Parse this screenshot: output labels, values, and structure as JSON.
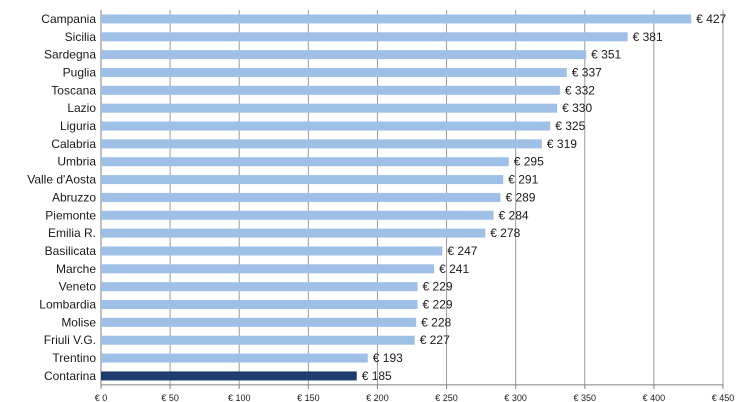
{
  "chart_data": {
    "type": "bar",
    "orientation": "horizontal",
    "categories": [
      "Campania",
      "Sicilia",
      "Sardegna",
      "Puglia",
      "Toscana",
      "Lazio",
      "Liguria",
      "Calabria",
      "Umbria",
      "Valle d'Aosta",
      "Abruzzo",
      "Piemonte",
      "Emilia R.",
      "Basilicata",
      "Marche",
      "Veneto",
      "Lombardia",
      "Molise",
      "Friuli V.G.",
      "Trentino",
      "Contarina"
    ],
    "values": [
      427,
      381,
      351,
      337,
      332,
      330,
      325,
      319,
      295,
      291,
      289,
      284,
      278,
      247,
      241,
      229,
      229,
      228,
      227,
      193,
      185
    ],
    "value_labels": [
      "€ 427",
      "€ 381",
      "€ 351",
      "€ 337",
      "€ 332",
      "€ 330",
      "€ 325",
      "€ 319",
      "€ 295",
      "€ 291",
      "€ 289",
      "€ 284",
      "€ 278",
      "€ 247",
      "€ 241",
      "€ 229",
      "€ 229",
      "€ 228",
      "€ 227",
      "€ 193",
      "€ 185"
    ],
    "highlight": "Contarina",
    "xlim": [
      0,
      450
    ],
    "ticks": [
      0,
      50,
      100,
      150,
      200,
      250,
      300,
      350,
      400,
      450
    ],
    "tick_labels": [
      "€ 0",
      "€ 50",
      "€ 100",
      "€ 150",
      "€ 200",
      "€ 250",
      "€ 300",
      "€ 350",
      "€ 400",
      "€ 450"
    ],
    "grid": true,
    "colors": {
      "bar": "#9fc0e6",
      "highlight": "#1f3c6e",
      "grid": "#9a9a9a",
      "axis": "#7f7f7f"
    },
    "title": "",
    "xlabel": "",
    "ylabel": ""
  }
}
